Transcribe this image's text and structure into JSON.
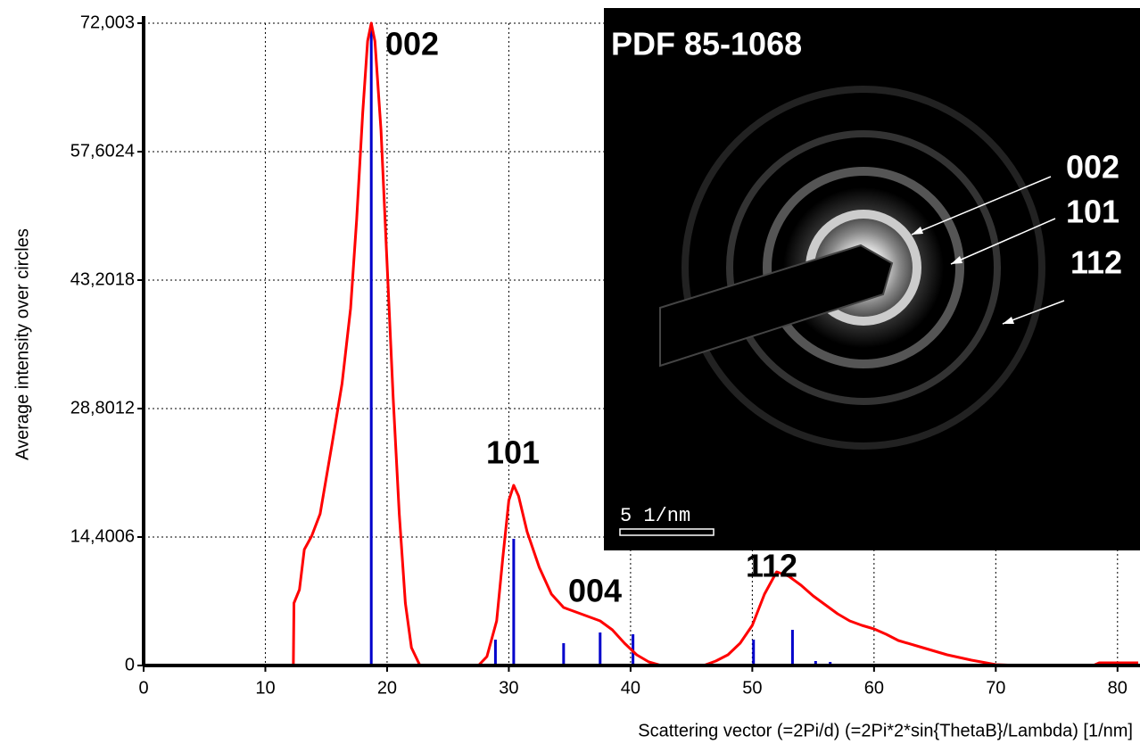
{
  "chart_data": {
    "type": "line",
    "ylabel": "Average intensity over circles",
    "xlabel": "Scattering vector (=2Pi/d) (=2Pi*2*sin{ThetaB}/Lambda) [1/nm]",
    "xlim": [
      0,
      81.7
    ],
    "ylim": [
      0,
      72.003
    ],
    "xticks": [
      0,
      10,
      20,
      30,
      40,
      50,
      60,
      70,
      80
    ],
    "yticks": [
      0,
      {
        "value": 14.4006,
        "label": "14,4006"
      },
      {
        "value": 28.8012,
        "label": "28,8012"
      },
      {
        "value": 43.2018,
        "label": "43,2018"
      },
      {
        "value": 57.6024,
        "label": "57,6024"
      },
      {
        "value": 72.003,
        "label": "72,003"
      }
    ],
    "grid": true,
    "curve": {
      "color": "#ff0000",
      "x": [
        12.3,
        12.35,
        12.8,
        13.2,
        13.8,
        14.5,
        15.5,
        16.3,
        17.0,
        17.5,
        18.0,
        18.4,
        18.7,
        19.0,
        19.5,
        20.0,
        20.5,
        21.0,
        21.5,
        22.0,
        22.7,
        27.5,
        28.2,
        29.0,
        29.5,
        30.0,
        30.4,
        30.8,
        31.5,
        32.5,
        33.5,
        34.5,
        35.5,
        36.5,
        37.5,
        38.5,
        39.5,
        40.5,
        41.5,
        42.5,
        46,
        47,
        48,
        49,
        50,
        51,
        52,
        53,
        54,
        55,
        56,
        57,
        58,
        59,
        60,
        61,
        62,
        64,
        66,
        68,
        70,
        72,
        78,
        78.5,
        81.7
      ],
      "values": [
        0,
        7.0,
        8.5,
        13,
        14.5,
        17,
        25,
        31.6,
        40,
        50,
        62,
        70,
        72,
        70,
        60,
        45,
        30,
        17,
        7,
        2,
        0,
        0,
        1,
        5,
        12,
        18.5,
        20.2,
        19,
        15,
        11,
        8,
        6.5,
        6,
        5.5,
        5.0,
        4.0,
        2.5,
        1.2,
        0.4,
        0,
        0,
        0.5,
        1.2,
        2.5,
        4.5,
        8,
        10.5,
        10,
        9,
        7.8,
        6.8,
        5.8,
        5,
        4.5,
        4.1,
        3.5,
        2.8,
        2,
        1.2,
        0.6,
        0.1,
        0,
        0,
        0.3,
        0.3
      ]
    },
    "sticks": {
      "color": "#0000cc",
      "x": [
        18.7,
        28.9,
        30.4,
        34.5,
        37.5,
        40.2,
        50.1,
        53.3,
        55.2,
        56.4
      ],
      "values": [
        72,
        2.9,
        14.2,
        2.5,
        3.7,
        3.5,
        2.9,
        4.0,
        0.5,
        0.4
      ]
    },
    "annotations": [
      "002",
      "101",
      "004",
      "112"
    ],
    "inset": {
      "title": "PDF 85-1068",
      "ring_labels": [
        "002",
        "101",
        "112"
      ],
      "scale_bar": "5 1/nm"
    }
  }
}
